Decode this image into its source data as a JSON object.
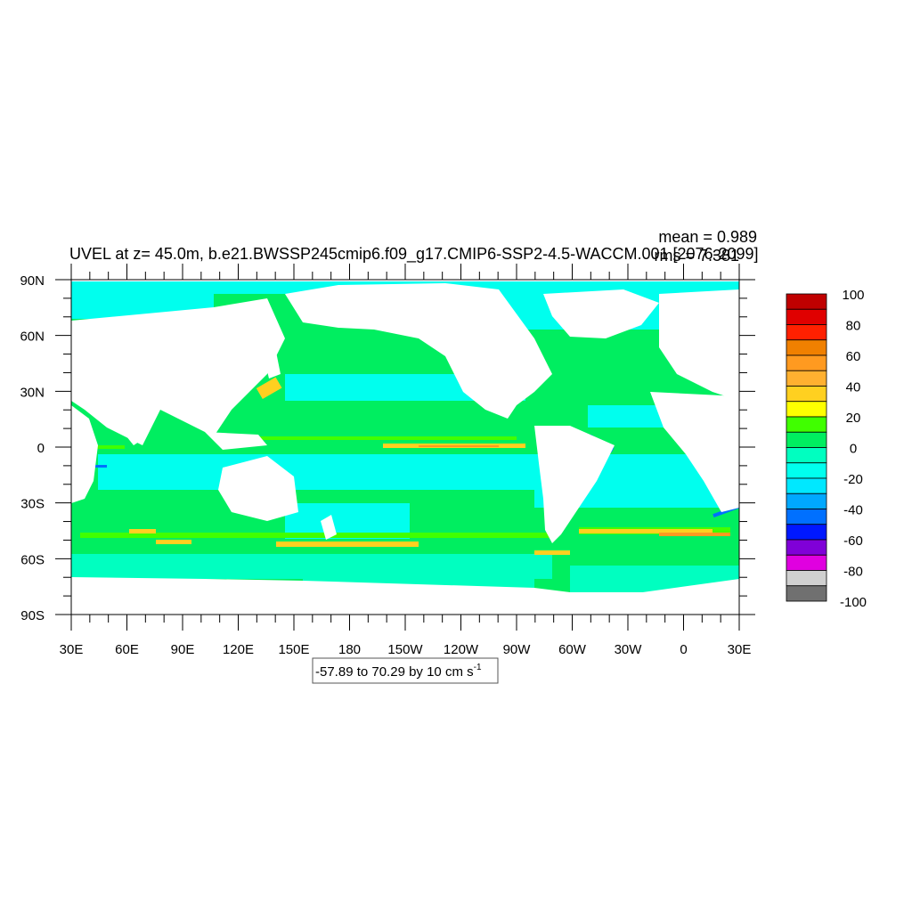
{
  "title": "UVEL at z=  45.0m, b.e21.BWSSP245cmip6.f09_g17.CMIP6-SSP2-4.5-WACCM.001 [2076-2099]",
  "stats": {
    "mean": "mean = 0.989",
    "rms": "rms = 7.381"
  },
  "range_label": "-57.89 to 70.29 by 10 cm s",
  "range_label_sup": "-1",
  "lat_ticks": [
    "90N",
    "60N",
    "30N",
    "0",
    "30S",
    "60S",
    "90S"
  ],
  "lon_ticks": [
    "30E",
    "60E",
    "90E",
    "120E",
    "150E",
    "180",
    "150W",
    "120W",
    "90W",
    "60W",
    "30W",
    "0",
    "30E"
  ],
  "colorbar": {
    "labels": [
      "100",
      "80",
      "60",
      "40",
      "20",
      "0",
      "-20",
      "-40",
      "-60",
      "-80",
      "-100"
    ],
    "colors": [
      "#c00000",
      "#e00000",
      "#ff2000",
      "#f08000",
      "#ff9a20",
      "#ffb030",
      "#ffd020",
      "#ffff00",
      "#40ff00",
      "#00ee60",
      "#00ffc0",
      "#00ffee",
      "#00e8ff",
      "#00a8ff",
      "#0070ff",
      "#0018ff",
      "#8000d8",
      "#e000e0",
      "#d0d0d0",
      "#707070"
    ]
  },
  "colors": {
    "ocean_base": "#00ee60",
    "cyan": "#00ffee",
    "teal": "#00ffc0",
    "land": "#ffffff"
  }
}
